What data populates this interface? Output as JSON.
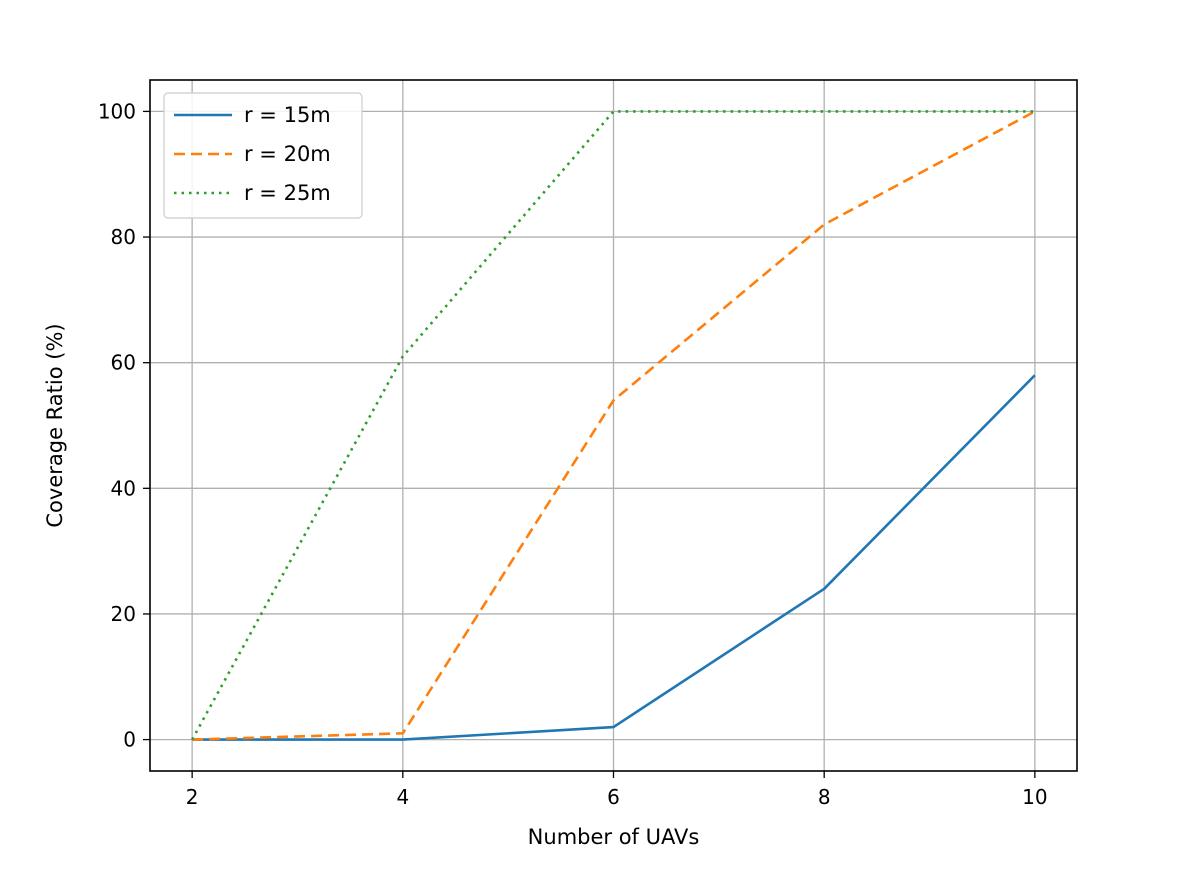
{
  "chart_data": {
    "type": "line",
    "title": "",
    "xlabel": "Number of UAVs",
    "ylabel": "Coverage Ratio (%)",
    "x": [
      2,
      4,
      6,
      8,
      10
    ],
    "xticks": [
      2,
      4,
      6,
      8,
      10
    ],
    "yticks": [
      0,
      20,
      40,
      60,
      80,
      100
    ],
    "xlim": [
      1.6,
      10.4
    ],
    "ylim": [
      -5,
      105
    ],
    "grid": true,
    "legend_position": "top-left",
    "series": [
      {
        "name": "r = 15m",
        "values": [
          0,
          0,
          2,
          24,
          58
        ],
        "color": "#1f77b4",
        "style": "solid"
      },
      {
        "name": "r = 20m",
        "values": [
          0,
          1,
          54,
          82,
          100
        ],
        "color": "#ff7f0e",
        "style": "dashed"
      },
      {
        "name": "r = 25m",
        "values": [
          0,
          61,
          100,
          100,
          100
        ],
        "color": "#2ca02c",
        "style": "dotted"
      }
    ]
  }
}
